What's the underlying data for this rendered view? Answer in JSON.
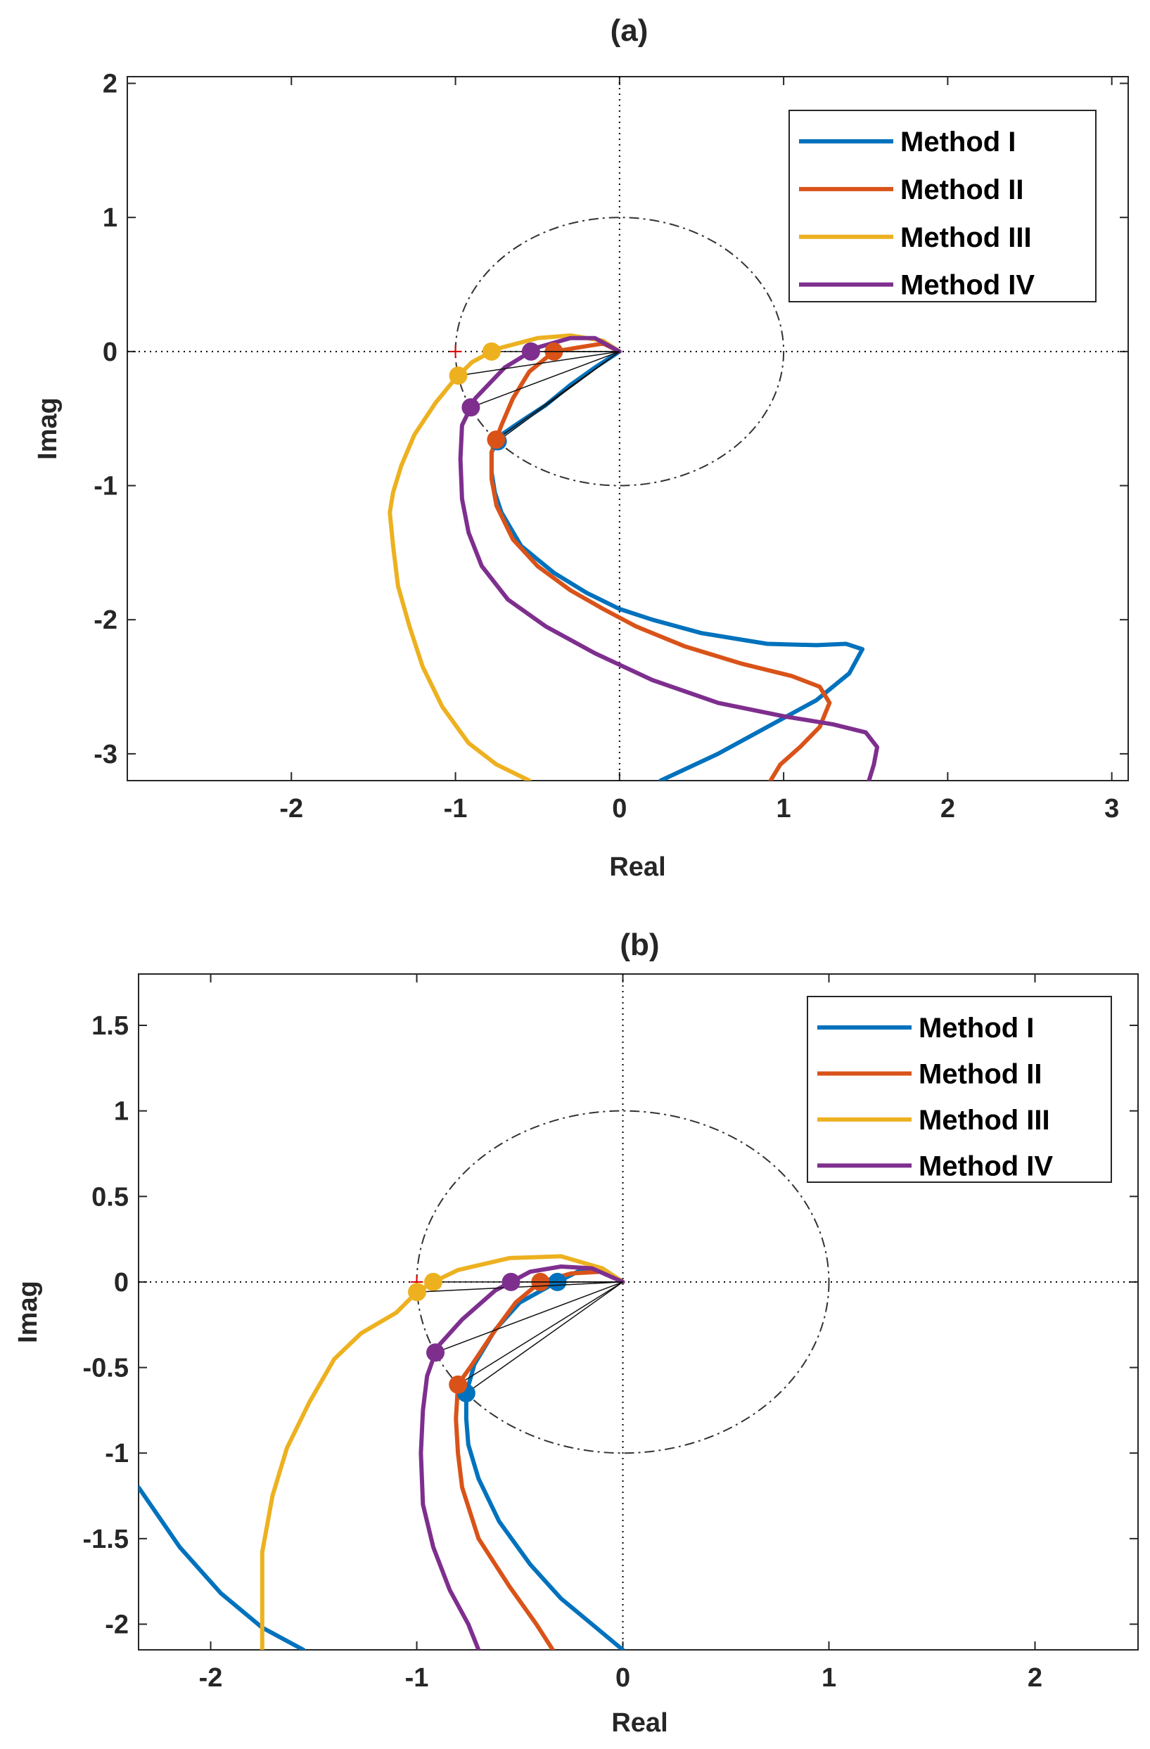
{
  "chart_data": [
    {
      "title": "(a)",
      "type": "line",
      "subtype": "nyquist",
      "xlabel": "Real",
      "ylabel": "Imag",
      "xlim": [
        -3,
        3.1
      ],
      "ylim": [
        -3.2,
        2.05
      ],
      "xticks": [
        -2,
        -1,
        0,
        1,
        2,
        3
      ],
      "yticks": [
        -3,
        -2,
        -1,
        0,
        1,
        2
      ],
      "unit_circle": true,
      "legend_position": "top-right",
      "series": [
        {
          "name": "Method I",
          "color": "#0072BD",
          "x": [
            0.0,
            -0.15,
            -0.3,
            -0.45,
            -0.6,
            -0.72,
            -0.78,
            -0.78,
            -0.76,
            -0.72,
            -0.6,
            -0.4,
            -0.2,
            0.0,
            0.2,
            0.5,
            0.9,
            1.2,
            1.38,
            1.48,
            1.4,
            1.2,
            0.9,
            0.6,
            0.25
          ],
          "y": [
            0.0,
            -0.12,
            -0.25,
            -0.4,
            -0.52,
            -0.62,
            -0.75,
            -0.9,
            -1.05,
            -1.2,
            -1.45,
            -1.65,
            -1.8,
            -1.92,
            -2.0,
            -2.1,
            -2.18,
            -2.19,
            -2.18,
            -2.22,
            -2.4,
            -2.6,
            -2.8,
            -3.0,
            -3.2
          ]
        },
        {
          "name": "Method II",
          "color": "#D95319",
          "x": [
            0.0,
            -0.1,
            -0.25,
            -0.4,
            -0.55,
            -0.65,
            -0.72,
            -0.78,
            -0.78,
            -0.75,
            -0.65,
            -0.5,
            -0.3,
            -0.1,
            0.1,
            0.4,
            0.75,
            1.05,
            1.22,
            1.28,
            1.22,
            1.1,
            0.98,
            0.92
          ],
          "y": [
            0.0,
            0.06,
            0.03,
            0.0,
            -0.15,
            -0.35,
            -0.55,
            -0.75,
            -0.95,
            -1.15,
            -1.4,
            -1.6,
            -1.78,
            -1.92,
            -2.05,
            -2.2,
            -2.33,
            -2.42,
            -2.5,
            -2.62,
            -2.8,
            -2.95,
            -3.08,
            -3.2
          ]
        },
        {
          "name": "Method III",
          "color": "#EDB120",
          "x": [
            0.0,
            -0.1,
            -0.3,
            -0.5,
            -0.75,
            -0.9,
            -1.0,
            -1.12,
            -1.25,
            -1.33,
            -1.38,
            -1.4,
            -1.38,
            -1.35,
            -1.28,
            -1.2,
            -1.08,
            -0.92,
            -0.75,
            -0.55
          ],
          "y": [
            0.0,
            0.08,
            0.12,
            0.1,
            0.02,
            -0.08,
            -0.2,
            -0.38,
            -0.62,
            -0.85,
            -1.05,
            -1.2,
            -1.45,
            -1.75,
            -2.05,
            -2.35,
            -2.65,
            -2.92,
            -3.08,
            -3.2
          ],
          "marker_point": [
            -0.75,
            0.0
          ],
          "marker_point_2": [
            -1.0,
            -0.2
          ]
        },
        {
          "name": "Method IV",
          "color": "#7E2F8E",
          "x": [
            0.0,
            -0.15,
            -0.3,
            -0.5,
            -0.7,
            -0.88,
            -0.96,
            -0.97,
            -0.96,
            -0.92,
            -0.84,
            -0.68,
            -0.45,
            -0.15,
            0.2,
            0.6,
            1.0,
            1.3,
            1.5,
            1.57,
            1.55,
            1.52
          ],
          "y": [
            0.0,
            0.1,
            0.1,
            0.03,
            -0.12,
            -0.35,
            -0.55,
            -0.8,
            -1.1,
            -1.35,
            -1.6,
            -1.85,
            -2.05,
            -2.25,
            -2.45,
            -2.62,
            -2.72,
            -2.78,
            -2.84,
            -2.95,
            -3.08,
            -3.2
          ]
        }
      ]
    },
    {
      "title": "(b)",
      "type": "line",
      "subtype": "nyquist",
      "xlabel": "Real",
      "ylabel": "Imag",
      "xlim": [
        -2.35,
        2.5
      ],
      "ylim": [
        -2.15,
        1.8
      ],
      "xticks": [
        -2,
        -1,
        0,
        1,
        2
      ],
      "yticks": [
        -2,
        -1.5,
        -1,
        -0.5,
        0,
        0.5,
        1,
        1.5
      ],
      "unit_circle": true,
      "legend_position": "top-right",
      "series": [
        {
          "name": "Method I",
          "color": "#0072BD",
          "x": [
            0.0,
            -0.1,
            -0.22,
            -0.35,
            -0.5,
            -0.62,
            -0.72,
            -0.76,
            -0.76,
            -0.75,
            -0.7,
            -0.6,
            -0.45,
            -0.3,
            -0.15,
            0.0
          ],
          "y": [
            0.0,
            0.08,
            0.06,
            -0.02,
            -0.12,
            -0.28,
            -0.48,
            -0.65,
            -0.8,
            -0.95,
            -1.15,
            -1.4,
            -1.65,
            -1.85,
            -2.0,
            -2.15
          ],
          "secondary_branch": {
            "x": [
              -2.35,
              -2.15,
              -1.95,
              -1.75,
              -1.55
            ],
            "y": [
              -1.2,
              -1.55,
              -1.82,
              -2.02,
              -2.15
            ]
          }
        },
        {
          "name": "Method II",
          "color": "#D95319",
          "x": [
            0.0,
            -0.1,
            -0.25,
            -0.4,
            -0.52,
            -0.63,
            -0.73,
            -0.8,
            -0.81,
            -0.8,
            -0.78,
            -0.7,
            -0.55,
            -0.42,
            -0.34
          ],
          "y": [
            0.0,
            0.06,
            0.05,
            0.0,
            -0.12,
            -0.3,
            -0.48,
            -0.6,
            -0.8,
            -1.0,
            -1.2,
            -1.5,
            -1.78,
            -2.0,
            -2.15
          ]
        },
        {
          "name": "Method III",
          "color": "#EDB120",
          "x": [
            0.0,
            -0.1,
            -0.3,
            -0.55,
            -0.8,
            -0.92,
            -1.0,
            -1.1,
            -1.27,
            -1.4,
            -1.52,
            -1.63,
            -1.7,
            -1.75,
            -1.75,
            -1.75
          ],
          "y": [
            0.0,
            0.08,
            0.15,
            0.14,
            0.07,
            0.0,
            -0.06,
            -0.18,
            -0.3,
            -0.45,
            -0.7,
            -0.97,
            -1.25,
            -1.58,
            -1.9,
            -2.15
          ],
          "marker_point": [
            -0.92,
            0.0
          ],
          "marker_point_2": [
            -1.0,
            -0.05
          ]
        },
        {
          "name": "Method IV",
          "color": "#7E2F8E",
          "x": [
            0.0,
            -0.15,
            -0.3,
            -0.45,
            -0.62,
            -0.78,
            -0.9,
            -0.95,
            -0.97,
            -0.98,
            -0.97,
            -0.92,
            -0.84,
            -0.75,
            -0.7
          ],
          "y": [
            0.0,
            0.08,
            0.09,
            0.06,
            -0.05,
            -0.22,
            -0.38,
            -0.55,
            -0.75,
            -1.0,
            -1.3,
            -1.55,
            -1.8,
            -2.0,
            -2.15
          ]
        }
      ]
    }
  ]
}
